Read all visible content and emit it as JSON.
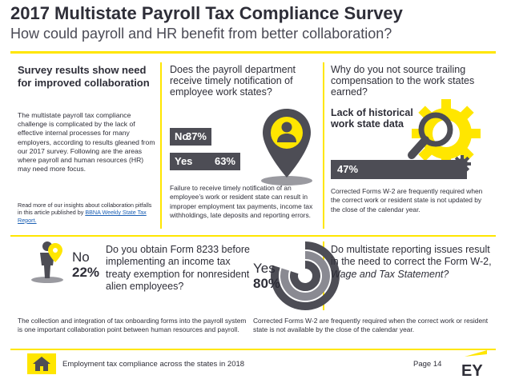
{
  "header": {
    "title": "2017 Multistate Payroll Tax Compliance Survey",
    "subtitle": "How could payroll and HR benefit from better collaboration?"
  },
  "panel1": {
    "heading": "Survey results show need for improved collaboration",
    "body": "The multistate payroll tax compliance challenge is complicated by the lack of effective internal processes for many employers, according to results gleaned from our 2017 survey. Following are the areas where payroll and human resources (HR) may need more focus.",
    "note_prefix": "Read more of our insights about collaboration pitfalls in this article published by ",
    "note_link": "BBNA Weekly State Tax Report."
  },
  "panel2": {
    "question": "Does the payroll department receive timely notification of employee work states?",
    "bars": [
      {
        "label": "No",
        "value": 37,
        "value_text": "37%"
      },
      {
        "label": "Yes",
        "value": 63,
        "value_text": "63%"
      }
    ],
    "icon": "map-pin-person-icon",
    "body": "Failure to receive timely notification of an employee’s work or resident state can result in improper employment tax payments, income tax withholdings, late deposits and reporting errors."
  },
  "panel3": {
    "question": "Why do you not source trailing compensation to the work states earned?",
    "answer": "Lack of historical work state data",
    "percent": 47,
    "percent_text": "47%",
    "icons": [
      "gear-icon",
      "magnifier-icon",
      "small-gear-icon"
    ],
    "body": "Corrected Forms W-2 are frequently required when the correct work or resident state is not updated by the close of the calendar year."
  },
  "panel4": {
    "answer_label": "No",
    "answer_value": "22%",
    "answer_fraction": 0.22,
    "icon": "person-pin-icon",
    "question": "Do you obtain Form 8233 before implementing an income tax treaty exemption for nonresident alien employees?",
    "body": "The collection and integration of tax onboarding forms into the payroll system is one important collaboration point between human resources and payroll."
  },
  "panel5": {
    "answer_label": "Yes",
    "answer_value": "80%",
    "answer_fraction": 0.8,
    "icon": "ring-gauge-icon",
    "question_prefix": "Do multistate reporting issues result in the need to correct the Form W-2, ",
    "question_italic": "Wage and Tax Statement?",
    "body": "Corrected Forms W-2 are frequently required when the correct work or resident state is not available by the close of the calendar year."
  },
  "footer": {
    "text": "Employment tax compliance across the states in 2018",
    "page": "Page 14",
    "home_icon": "home-icon",
    "logo": "EY"
  },
  "colors": {
    "accent": "#ffe600",
    "dark": "#2e2e38",
    "bar": "#4d4d55"
  }
}
